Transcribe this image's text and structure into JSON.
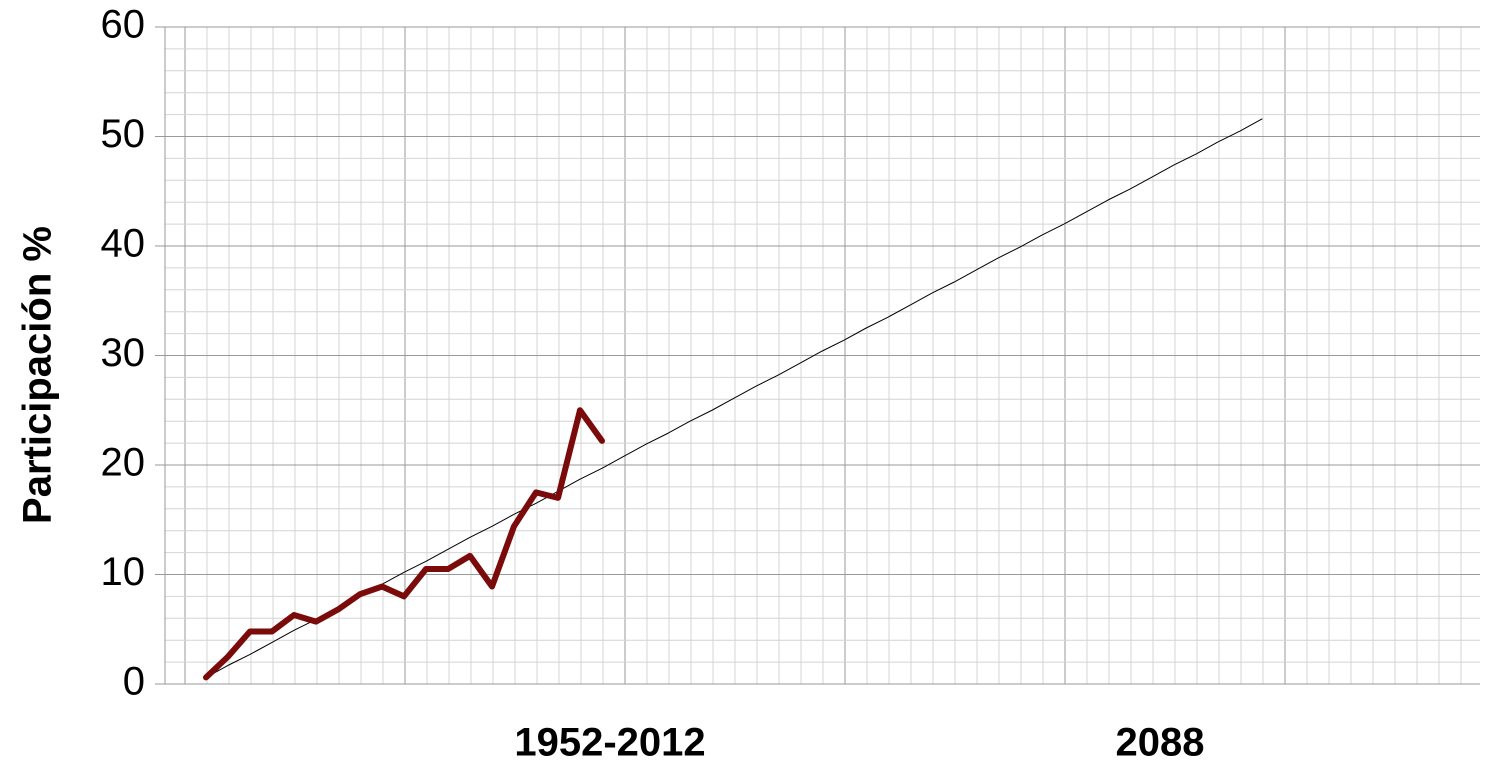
{
  "chart_data": {
    "type": "line",
    "y_label": "Participación %",
    "annotations": [
      "1952-2012",
      "2088"
    ],
    "categories": [
      null,
      null,
      null,
      null,
      null,
      null,
      null,
      null,
      null,
      null,
      null,
      null,
      null,
      null,
      null,
      null,
      null,
      null,
      null,
      null,
      null,
      null,
      null,
      null,
      null,
      null,
      null,
      null,
      null,
      null,
      null,
      null,
      null,
      null,
      null,
      null,
      null,
      null,
      null,
      null,
      null,
      null,
      null,
      null,
      null,
      null,
      null,
      null,
      null
    ],
    "series": [
      {
        "color": "#000000",
        "width": 1,
        "values": [
          0.6,
          1.7,
          2.7,
          3.8,
          4.9,
          5.9,
          7.0,
          8.0,
          9.1,
          10.2,
          11.2,
          12.3,
          13.4,
          14.4,
          15.5,
          16.5,
          17.6,
          18.7,
          19.7,
          20.8,
          21.9,
          22.9,
          24.0,
          25.0,
          26.1,
          27.2,
          28.2,
          29.3,
          30.4,
          31.4,
          32.5,
          33.5,
          34.6,
          35.7,
          36.7,
          37.8,
          38.9,
          39.9,
          41.0,
          42.0,
          43.1,
          44.2,
          45.2,
          46.3,
          47.4,
          48.4,
          49.5,
          50.5,
          51.6
        ]
      },
      {
        "color": "#7b0a0a",
        "width": 6,
        "values": [
          0.6,
          2.5,
          4.8,
          4.8,
          6.3,
          5.7,
          6.8,
          8.2,
          8.9,
          8.0,
          10.5,
          10.5,
          11.7,
          8.9,
          14.4,
          17.5,
          17.0,
          25.0,
          22.2,
          null,
          null,
          null,
          null,
          null,
          null,
          null,
          null,
          null,
          null,
          null,
          null,
          null,
          null,
          null,
          null,
          null,
          null,
          null,
          null,
          null,
          null,
          null,
          null,
          null,
          null,
          null,
          null,
          null,
          null
        ]
      }
    ],
    "ylim": [
      0,
      60
    ],
    "yticks": [
      0,
      10,
      20,
      30,
      40,
      50,
      60
    ],
    "yticks_minor": [
      2,
      4,
      6,
      8,
      12,
      14,
      16,
      18,
      22,
      24,
      26,
      28,
      32,
      34,
      36,
      38,
      42,
      44,
      46,
      48,
      52,
      54,
      56,
      58
    ],
    "grid": true
  }
}
